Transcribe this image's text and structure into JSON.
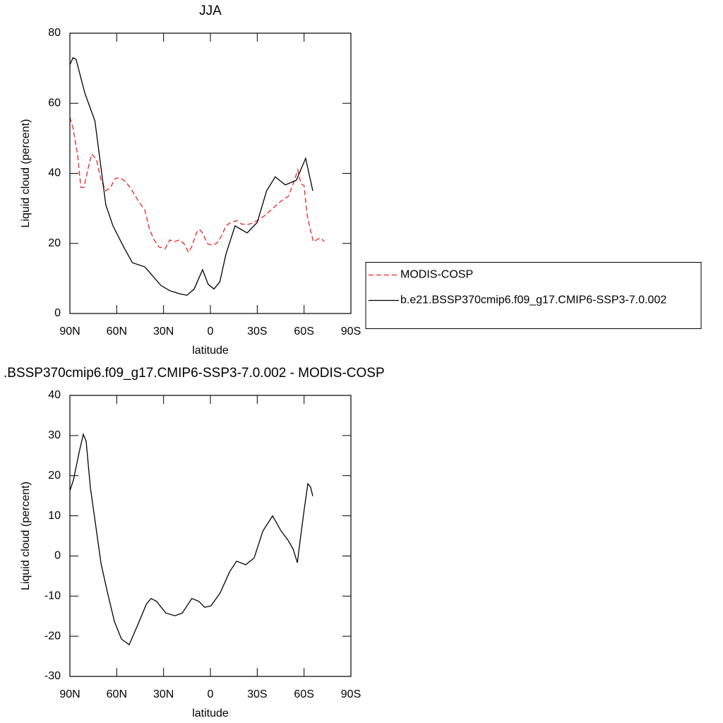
{
  "chart_data": [
    {
      "type": "line",
      "title": "JJA",
      "xlabel": "latitude",
      "ylabel": "Liquid cloud (percent)",
      "xlim": [
        90,
        -90
      ],
      "xticks": [
        {
          "value": 90,
          "label": "90N"
        },
        {
          "value": 60,
          "label": "60N"
        },
        {
          "value": 30,
          "label": "30N"
        },
        0,
        {
          "value": -30,
          "label": "30S"
        },
        {
          "value": -60,
          "label": "60S"
        },
        {
          "value": -90,
          "label": "90S"
        }
      ],
      "ylim": [
        0,
        80
      ],
      "yticks": [
        0,
        20,
        40,
        60,
        80
      ],
      "legend": "right",
      "series": [
        {
          "name": "MODIS-COSP",
          "color": "#e8231d",
          "line_style": "dashed",
          "x": [
            90,
            88,
            85,
            83,
            81,
            78,
            76,
            73,
            70,
            67,
            64,
            61,
            58,
            54,
            50,
            46,
            42,
            39,
            36,
            33,
            29,
            26,
            23,
            20,
            17,
            14,
            12,
            9,
            7,
            5,
            2,
            -1,
            -4,
            -7,
            -10,
            -13,
            -17,
            -20,
            -25,
            -30,
            -35,
            -40,
            -45,
            -50,
            -53,
            -56,
            -58,
            -60,
            -62,
            -64,
            -66,
            -68,
            -70,
            -72,
            -73
          ],
          "values": [
            56,
            53,
            45,
            36,
            36,
            42,
            45.5,
            44,
            38,
            35,
            36,
            38.5,
            38.8,
            37.5,
            35,
            32,
            29.5,
            24,
            21,
            19,
            18.5,
            21,
            20.5,
            21,
            20,
            17.5,
            19,
            23,
            24,
            23,
            20,
            19.5,
            20,
            22,
            25,
            26,
            26.5,
            25.5,
            25.5,
            26.5,
            28,
            30,
            32,
            33.5,
            37,
            41,
            37,
            36.5,
            28,
            24,
            20.5,
            21,
            21.5,
            21,
            20.5
          ]
        },
        {
          "name": "b.e21.BSSP370cmip6.f09_g17.CMIP6-SSP3-7.0.002",
          "color": "#000000",
          "line_style": "solid",
          "x": [
            90,
            88,
            86,
            80.5,
            74,
            67,
            62.4,
            55.6,
            50,
            42,
            37.5,
            31.7,
            26,
            19.5,
            15,
            10.4,
            5,
            1.4,
            -2.3,
            -6,
            -10,
            -15.8,
            -23.5,
            -30,
            -36,
            -41.5,
            -48,
            -55,
            -61,
            -65.6
          ],
          "values": [
            71,
            73,
            72.5,
            63,
            55,
            31,
            25,
            19,
            14.5,
            13.3,
            11,
            8,
            6.5,
            5.6,
            5.2,
            7,
            12.5,
            8.3,
            7,
            9,
            17,
            25,
            23,
            26,
            35,
            39,
            36.7,
            38,
            44.3,
            35
          ]
        }
      ]
    },
    {
      "type": "line",
      "title": ".BSSP370cmip6.f09_g17.CMIP6-SSP3-7.0.002 - MODIS-COSP",
      "xlabel": "latitude",
      "ylabel": "Liquid cloud (percent)",
      "xlim": [
        90,
        -90
      ],
      "xticks": [
        {
          "value": 90,
          "label": "90N"
        },
        {
          "value": 60,
          "label": "60N"
        },
        {
          "value": 30,
          "label": "30N"
        },
        0,
        {
          "value": -30,
          "label": "30S"
        },
        {
          "value": -60,
          "label": "60S"
        },
        {
          "value": -90,
          "label": "90S"
        }
      ],
      "ylim": [
        -30,
        40
      ],
      "yticks": [
        -30,
        -20,
        -10,
        0,
        10,
        20,
        30,
        40
      ],
      "series": [
        {
          "color": "#000000",
          "line_style": "solid",
          "x": [
            90,
            87.7,
            84,
            81.4,
            79.6,
            76.9,
            73.7,
            70,
            66,
            61.5,
            57,
            52,
            46.6,
            41,
            38,
            34.5,
            28.6,
            22.7,
            18,
            11.9,
            7.4,
            3.6,
            -0.4,
            -6.3,
            -12.2,
            -16.8,
            -22.6,
            -28,
            -33.6,
            -39.8,
            -45.3,
            -49.8,
            -53,
            -55.7,
            -57.5,
            -60.2,
            -62.4,
            -64.2,
            -65.6
          ],
          "values": [
            16.3,
            19,
            26,
            30.3,
            28.6,
            17,
            8.3,
            -2,
            -9,
            -16.3,
            -20.7,
            -22.1,
            -17.2,
            -12,
            -10.6,
            -11.3,
            -14.2,
            -14.9,
            -14.2,
            -10.6,
            -11.3,
            -12.8,
            -12.4,
            -9.2,
            -4,
            -1.3,
            -2.2,
            -0.5,
            6.2,
            10,
            6.2,
            3.9,
            1.7,
            -1.7,
            3.9,
            11.9,
            18,
            17.1,
            14.9
          ]
        }
      ]
    }
  ]
}
